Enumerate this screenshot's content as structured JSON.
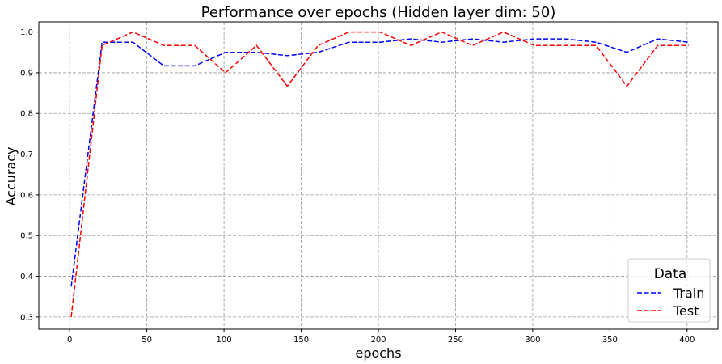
{
  "chart_data": {
    "type": "line",
    "title": "Performance over epochs (Hidden layer dim: 50)",
    "xlabel": "epochs",
    "ylabel": "Accuracy",
    "xlim": [
      -20,
      420
    ],
    "ylim": [
      0.27,
      1.025
    ],
    "grid": true,
    "legend": {
      "title": "Data",
      "placement": "lower-right"
    },
    "x": [
      1,
      21,
      41,
      61,
      81,
      101,
      121,
      141,
      161,
      181,
      201,
      221,
      241,
      261,
      281,
      301,
      321,
      341,
      361,
      381,
      401
    ],
    "series": [
      {
        "name": "Train",
        "color": "#0000ff",
        "values": [
          0.375,
          0.975,
          0.975,
          0.917,
          0.917,
          0.95,
          0.95,
          0.942,
          0.95,
          0.975,
          0.975,
          0.983,
          0.975,
          0.983,
          0.975,
          0.983,
          0.983,
          0.975,
          0.95,
          0.983,
          0.975
        ]
      },
      {
        "name": "Test",
        "color": "#ff0000",
        "values": [
          0.3,
          0.967,
          1.0,
          0.967,
          0.967,
          0.9,
          0.967,
          0.867,
          0.967,
          1.0,
          1.0,
          0.967,
          1.0,
          0.967,
          1.0,
          0.967,
          0.967,
          0.967,
          0.867,
          0.967,
          0.967
        ]
      }
    ],
    "x_ticks": [
      0,
      50,
      100,
      150,
      200,
      250,
      300,
      350,
      400
    ],
    "x_tick_labels": [
      "0",
      "50",
      "100",
      "150",
      "200",
      "250",
      "300",
      "350",
      "400"
    ],
    "y_ticks": [
      0.3,
      0.4,
      0.5,
      0.6,
      0.7,
      0.8,
      0.9,
      1.0
    ],
    "y_tick_labels": [
      "0.3",
      "0.4",
      "0.5",
      "0.6",
      "0.7",
      "0.8",
      "0.9",
      "1.0"
    ]
  }
}
